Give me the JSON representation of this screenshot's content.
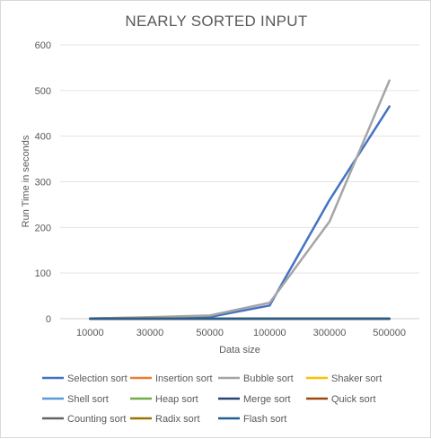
{
  "chart_data": {
    "type": "line",
    "title": "NEARLY SORTED INPUT",
    "xlabel": "Data size",
    "ylabel": "Run Time in seconds",
    "categories": [
      "10000",
      "30000",
      "50000",
      "100000",
      "300000",
      "500000"
    ],
    "ylim": [
      0,
      600
    ],
    "yticks": [
      0,
      100,
      200,
      300,
      400,
      500,
      600
    ],
    "grid": true,
    "legend_position": "bottom",
    "series": [
      {
        "name": "Selection sort",
        "color": "#4472C4",
        "values": [
          0.3,
          2.5,
          4,
          29,
          260,
          465
        ]
      },
      {
        "name": "Insertion sort",
        "color": "#ED7D31",
        "values": [
          0,
          0,
          0,
          0,
          0,
          0
        ]
      },
      {
        "name": "Bubble sort",
        "color": "#A5A5A5",
        "values": [
          0.4,
          3.5,
          7,
          35,
          213,
          522
        ]
      },
      {
        "name": "Shaker sort",
        "color": "#FFC000",
        "values": [
          0,
          0,
          0,
          0,
          0,
          0
        ]
      },
      {
        "name": "Shell sort",
        "color": "#5B9BD5",
        "values": [
          0,
          0,
          0,
          0,
          0,
          0
        ]
      },
      {
        "name": "Heap sort",
        "color": "#70AD47",
        "values": [
          0,
          0,
          0,
          0,
          0,
          0
        ]
      },
      {
        "name": "Merge sort",
        "color": "#264478",
        "values": [
          0,
          0,
          0,
          0,
          0,
          0
        ]
      },
      {
        "name": "Quick sort",
        "color": "#9E480E",
        "values": [
          0,
          0,
          0,
          0,
          0,
          0
        ]
      },
      {
        "name": "Counting sort",
        "color": "#636363",
        "values": [
          0,
          0,
          0,
          0,
          0,
          0
        ]
      },
      {
        "name": "Radix sort",
        "color": "#997300",
        "values": [
          0,
          0,
          0,
          0,
          0,
          0
        ]
      },
      {
        "name": "Flash sort",
        "color": "#255E91",
        "values": [
          0,
          0,
          0,
          0,
          0,
          0
        ]
      }
    ]
  }
}
